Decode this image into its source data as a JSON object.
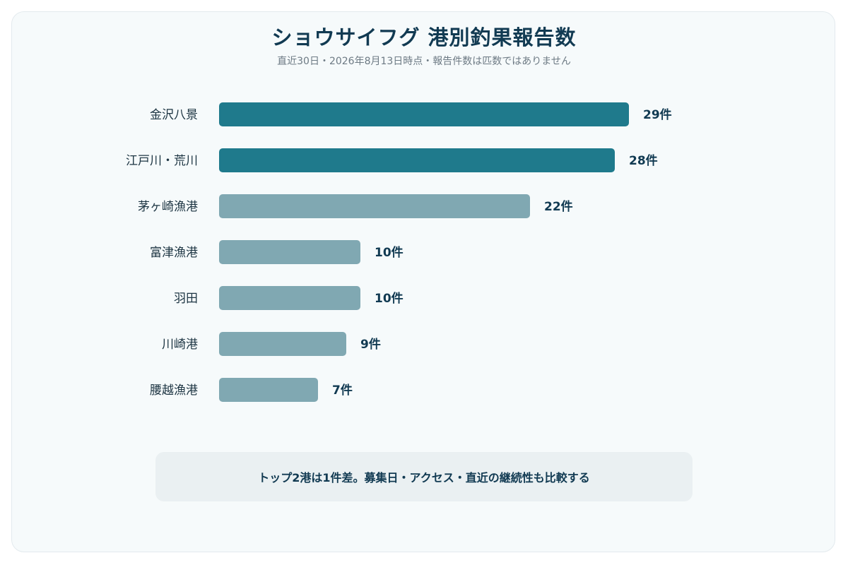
{
  "chart_data": {
    "type": "bar",
    "orientation": "horizontal",
    "title": "ショウサイフグ 港別釣果報告数",
    "subtitle": "直近30日・2026年8月13日時点・報告件数は匹数ではありません",
    "categories": [
      "金沢八景",
      "江戸川・荒川",
      "茅ヶ崎漁港",
      "富津漁港",
      "羽田",
      "川崎港",
      "腰越漁港"
    ],
    "values": [
      29,
      28,
      22,
      10,
      10,
      9,
      7
    ],
    "value_labels": [
      "29件",
      "28件",
      "22件",
      "10件",
      "10件",
      "9件",
      "7件"
    ],
    "highlighted": [
      true,
      true,
      false,
      false,
      false,
      false,
      false
    ],
    "xlim": [
      0,
      29
    ],
    "grid": false,
    "colors": {
      "highlight": "#1f7a8c",
      "normal": "#80a8b2",
      "text": "#113a52"
    }
  },
  "note": "トップ2港は1件差。募集日・アクセス・直近の継続性も比較する"
}
